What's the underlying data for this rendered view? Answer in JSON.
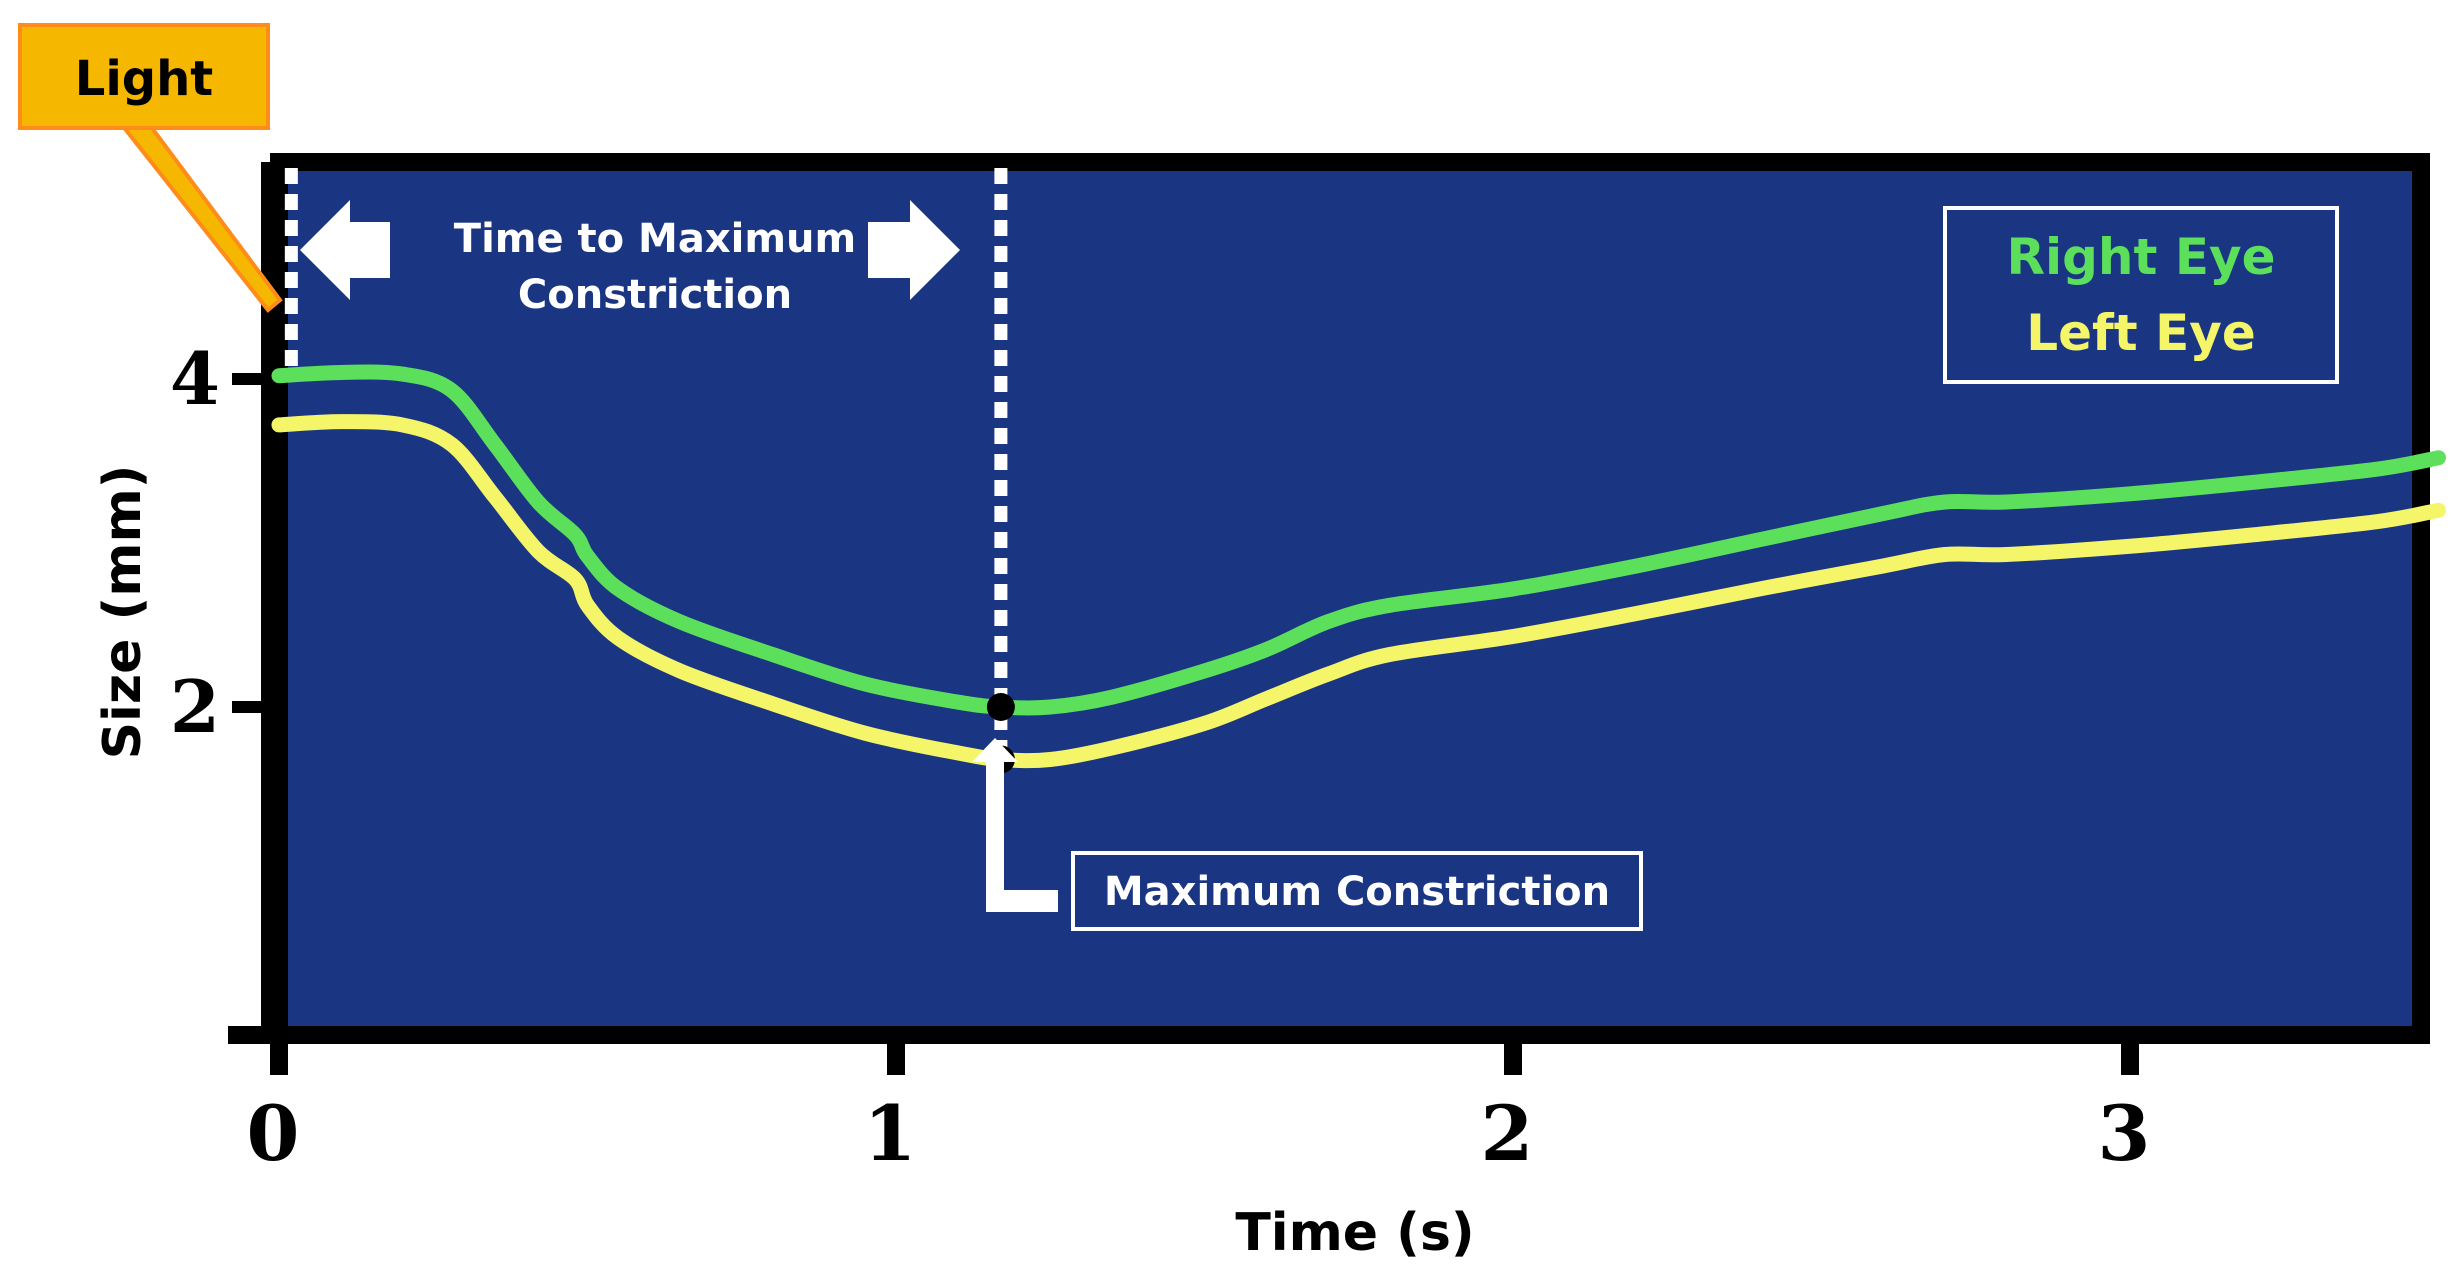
{
  "chart_data": {
    "type": "line",
    "xlabel": "Time (s)",
    "ylabel": "Size (mm)",
    "xlim": [
      0,
      3.5
    ],
    "ylim": [
      0,
      5
    ],
    "x_ticks": [
      "0",
      "1",
      "2",
      "3"
    ],
    "y_ticks": [
      "4",
      "2"
    ],
    "grid": false,
    "legend_position": "top-right",
    "background_color": "#1a3683",
    "series": [
      {
        "name": "Right Eye",
        "color": "#5ce05c",
        "points": [
          [
            0,
            4.02
          ],
          [
            0.1,
            4.04
          ],
          [
            0.2,
            4.03
          ],
          [
            0.28,
            3.93
          ],
          [
            0.35,
            3.6
          ],
          [
            0.42,
            3.25
          ],
          [
            0.48,
            3.05
          ],
          [
            0.5,
            2.92
          ],
          [
            0.55,
            2.72
          ],
          [
            0.65,
            2.52
          ],
          [
            0.8,
            2.32
          ],
          [
            0.95,
            2.14
          ],
          [
            1.1,
            2.03
          ],
          [
            1.17,
            2.0
          ],
          [
            1.25,
            2.0
          ],
          [
            1.35,
            2.06
          ],
          [
            1.5,
            2.22
          ],
          [
            1.6,
            2.35
          ],
          [
            1.7,
            2.52
          ],
          [
            1.8,
            2.62
          ],
          [
            2.0,
            2.72
          ],
          [
            2.2,
            2.86
          ],
          [
            2.4,
            3.02
          ],
          [
            2.6,
            3.18
          ],
          [
            2.7,
            3.25
          ],
          [
            2.8,
            3.25
          ],
          [
            3.0,
            3.3
          ],
          [
            3.2,
            3.37
          ],
          [
            3.4,
            3.45
          ],
          [
            3.5,
            3.52
          ]
        ]
      },
      {
        "name": "Left Eye",
        "color": "#f5f56a",
        "points": [
          [
            0,
            3.72
          ],
          [
            0.1,
            3.74
          ],
          [
            0.2,
            3.72
          ],
          [
            0.28,
            3.6
          ],
          [
            0.35,
            3.28
          ],
          [
            0.42,
            2.95
          ],
          [
            0.48,
            2.78
          ],
          [
            0.5,
            2.62
          ],
          [
            0.55,
            2.42
          ],
          [
            0.65,
            2.22
          ],
          [
            0.8,
            2.02
          ],
          [
            0.95,
            1.84
          ],
          [
            1.1,
            1.72
          ],
          [
            1.17,
            1.68
          ],
          [
            1.25,
            1.68
          ],
          [
            1.35,
            1.75
          ],
          [
            1.5,
            1.9
          ],
          [
            1.6,
            2.05
          ],
          [
            1.7,
            2.2
          ],
          [
            1.8,
            2.32
          ],
          [
            2.0,
            2.43
          ],
          [
            2.2,
            2.57
          ],
          [
            2.4,
            2.72
          ],
          [
            2.6,
            2.86
          ],
          [
            2.7,
            2.93
          ],
          [
            2.8,
            2.93
          ],
          [
            3.0,
            2.98
          ],
          [
            3.2,
            3.05
          ],
          [
            3.4,
            3.13
          ],
          [
            3.5,
            3.2
          ]
        ]
      }
    ],
    "markers": [
      {
        "name": "Right Eye minimum",
        "x": 1.17,
        "y": 2.0
      },
      {
        "name": "Left Eye minimum",
        "x": 1.17,
        "y": 1.68
      }
    ],
    "stimulus_line_x": 0.02,
    "max_constriction_line_x": 1.17,
    "annotations": {
      "light": "Light",
      "time_to_max_line1": "Time to Maximum",
      "time_to_max_line2": "Constriction",
      "max_constriction": "Maximum Constriction"
    },
    "legend": [
      {
        "label": "Right Eye",
        "color": "#5ce05c"
      },
      {
        "label": "Left Eye",
        "color": "#f5f56a"
      }
    ],
    "light_box_color": "#f5b700",
    "light_border_color": "#ff8c1a"
  }
}
